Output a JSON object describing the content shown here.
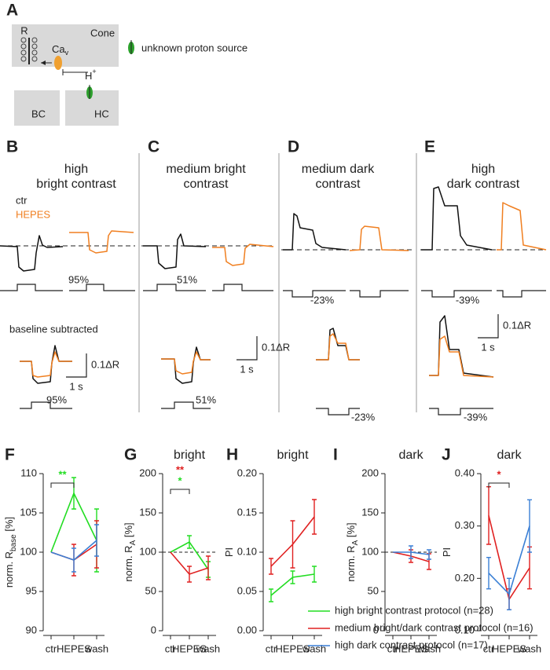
{
  "panel_a": {
    "letter": "A",
    "r": "R",
    "cone": "Cone",
    "cav": "Ca",
    "cav_sub": "v",
    "h": "H",
    "h_sup": "+",
    "bc": "BC",
    "hc": "HC",
    "unknown": "unknown proton source"
  },
  "trace_legend": {
    "ctr": "ctr",
    "hepes": "HEPES",
    "baseline_subtracted": "baseline subtracted"
  },
  "trace_panels": [
    {
      "letter": "B",
      "title": [
        "high",
        "bright contrast"
      ],
      "stimulus": "95%",
      "stimulus_lower": "95%",
      "scale_amplitude": "0.1ΔR",
      "scale_time": "1 s"
    },
    {
      "letter": "C",
      "title": [
        "medium bright",
        "contrast"
      ],
      "stimulus": "51%",
      "stimulus_lower": "51%",
      "scale_amplitude": "0.1ΔR",
      "scale_time": "1 s"
    },
    {
      "letter": "D",
      "title": [
        "medium dark",
        "contrast"
      ],
      "stimulus": "-23%",
      "stimulus_lower": "-23%"
    },
    {
      "letter": "E",
      "title": [
        "high",
        "dark contrast"
      ],
      "stimulus": "-39%",
      "stimulus_lower": "-39%",
      "scale_amplitude": "0.1ΔR",
      "scale_time": "1 s"
    }
  ],
  "chart_data": [
    {
      "type": "line",
      "letter": "F",
      "ylabel": [
        "norm. R",
        "base",
        " [%]"
      ],
      "categories": [
        "ctr",
        "HEPES",
        "wash"
      ],
      "ylim": [
        90,
        110
      ],
      "yticks": [
        90,
        95,
        100,
        105,
        110
      ],
      "annotations": [
        {
          "text": "**",
          "color": "#22dd22"
        }
      ],
      "series": [
        {
          "name": "high bright contrast protocol (n=28)",
          "color": "#22dd22",
          "values": [
            100,
            107.5,
            101.5
          ],
          "errors": [
            null,
            2,
            4
          ]
        },
        {
          "name": "medium bright/dark contrast protocol (n=16)",
          "color": "#e02020",
          "values": [
            100,
            99,
            101
          ],
          "errors": [
            null,
            2,
            3
          ]
        },
        {
          "name": "high dark contrast protocol (n=17)",
          "color": "#3a7fd5",
          "values": [
            100,
            99,
            101.5
          ],
          "errors": [
            null,
            1.5,
            2
          ]
        }
      ]
    },
    {
      "type": "line",
      "letter": "G",
      "title": "bright",
      "ylabel": [
        "norm. R",
        "A",
        " [%]"
      ],
      "categories": [
        "ctr",
        "HEPES",
        "wash"
      ],
      "ylim": [
        0,
        200
      ],
      "yticks": [
        0,
        50,
        100,
        150,
        200
      ],
      "ref_line": 100,
      "annotations": [
        {
          "text": "**",
          "color": "#e02020"
        },
        {
          "text": "*",
          "color": "#22dd22"
        }
      ],
      "series": [
        {
          "color": "#22dd22",
          "values": [
            100,
            113,
            78
          ],
          "errors": [
            null,
            8,
            10
          ]
        },
        {
          "color": "#e02020",
          "values": [
            100,
            72,
            80
          ],
          "errors": [
            null,
            10,
            15
          ]
        }
      ]
    },
    {
      "type": "line",
      "letter": "H",
      "title": "bright",
      "ylabel": [
        "PI"
      ],
      "categories": [
        "ctr",
        "HEPES",
        "wash"
      ],
      "ylim": [
        0,
        0.2
      ],
      "yticks": [
        {
          "value": 0,
          "label": "0.00"
        },
        0.05,
        {
          "value": 0.1,
          "label": "0.10"
        },
        0.15,
        {
          "value": 0.2,
          "label": "0.20"
        }
      ],
      "series": [
        {
          "color": "#22dd22",
          "values": [
            0.045,
            0.068,
            0.072
          ],
          "errors": [
            0.008,
            0.008,
            0.01
          ]
        },
        {
          "color": "#e02020",
          "values": [
            0.082,
            0.11,
            0.145
          ],
          "errors": [
            0.01,
            0.03,
            0.022
          ]
        }
      ]
    },
    {
      "type": "line",
      "letter": "I",
      "title": "dark",
      "ylabel": [
        "norm. R",
        "A",
        " [%]"
      ],
      "categories": [
        "ctr",
        "HEPES",
        "wash"
      ],
      "ylim": [
        0,
        200
      ],
      "yticks": [
        0,
        50,
        100,
        150,
        200
      ],
      "ref_line": 100,
      "series": [
        {
          "color": "#e02020",
          "values": [
            100,
            95,
            88
          ],
          "errors": [
            null,
            8,
            10
          ]
        },
        {
          "color": "#3a7fd5",
          "values": [
            100,
            100,
            97
          ],
          "errors": [
            null,
            8,
            6
          ]
        }
      ]
    },
    {
      "type": "line",
      "letter": "J",
      "title": "dark",
      "ylabel": [
        "PI"
      ],
      "categories": [
        "ctr",
        "HEPES",
        "wash"
      ],
      "ylim": [
        0.1,
        0.4
      ],
      "yticks": [
        {
          "value": 0.1,
          "label": "0.10"
        },
        {
          "value": 0.2,
          "label": "0.20"
        },
        {
          "value": 0.3,
          "label": "0.30"
        },
        {
          "value": 0.4,
          "label": "0.40"
        }
      ],
      "annotations": [
        {
          "text": "*",
          "color": "#e02020"
        }
      ],
      "series": [
        {
          "color": "#e02020",
          "values": [
            0.32,
            0.16,
            0.22
          ],
          "errors": [
            0.055,
            0.02,
            0.04
          ]
        },
        {
          "color": "#3a7fd5",
          "values": [
            0.21,
            0.17,
            0.3
          ],
          "errors": [
            0.03,
            0.03,
            0.05
          ]
        }
      ]
    }
  ]
}
